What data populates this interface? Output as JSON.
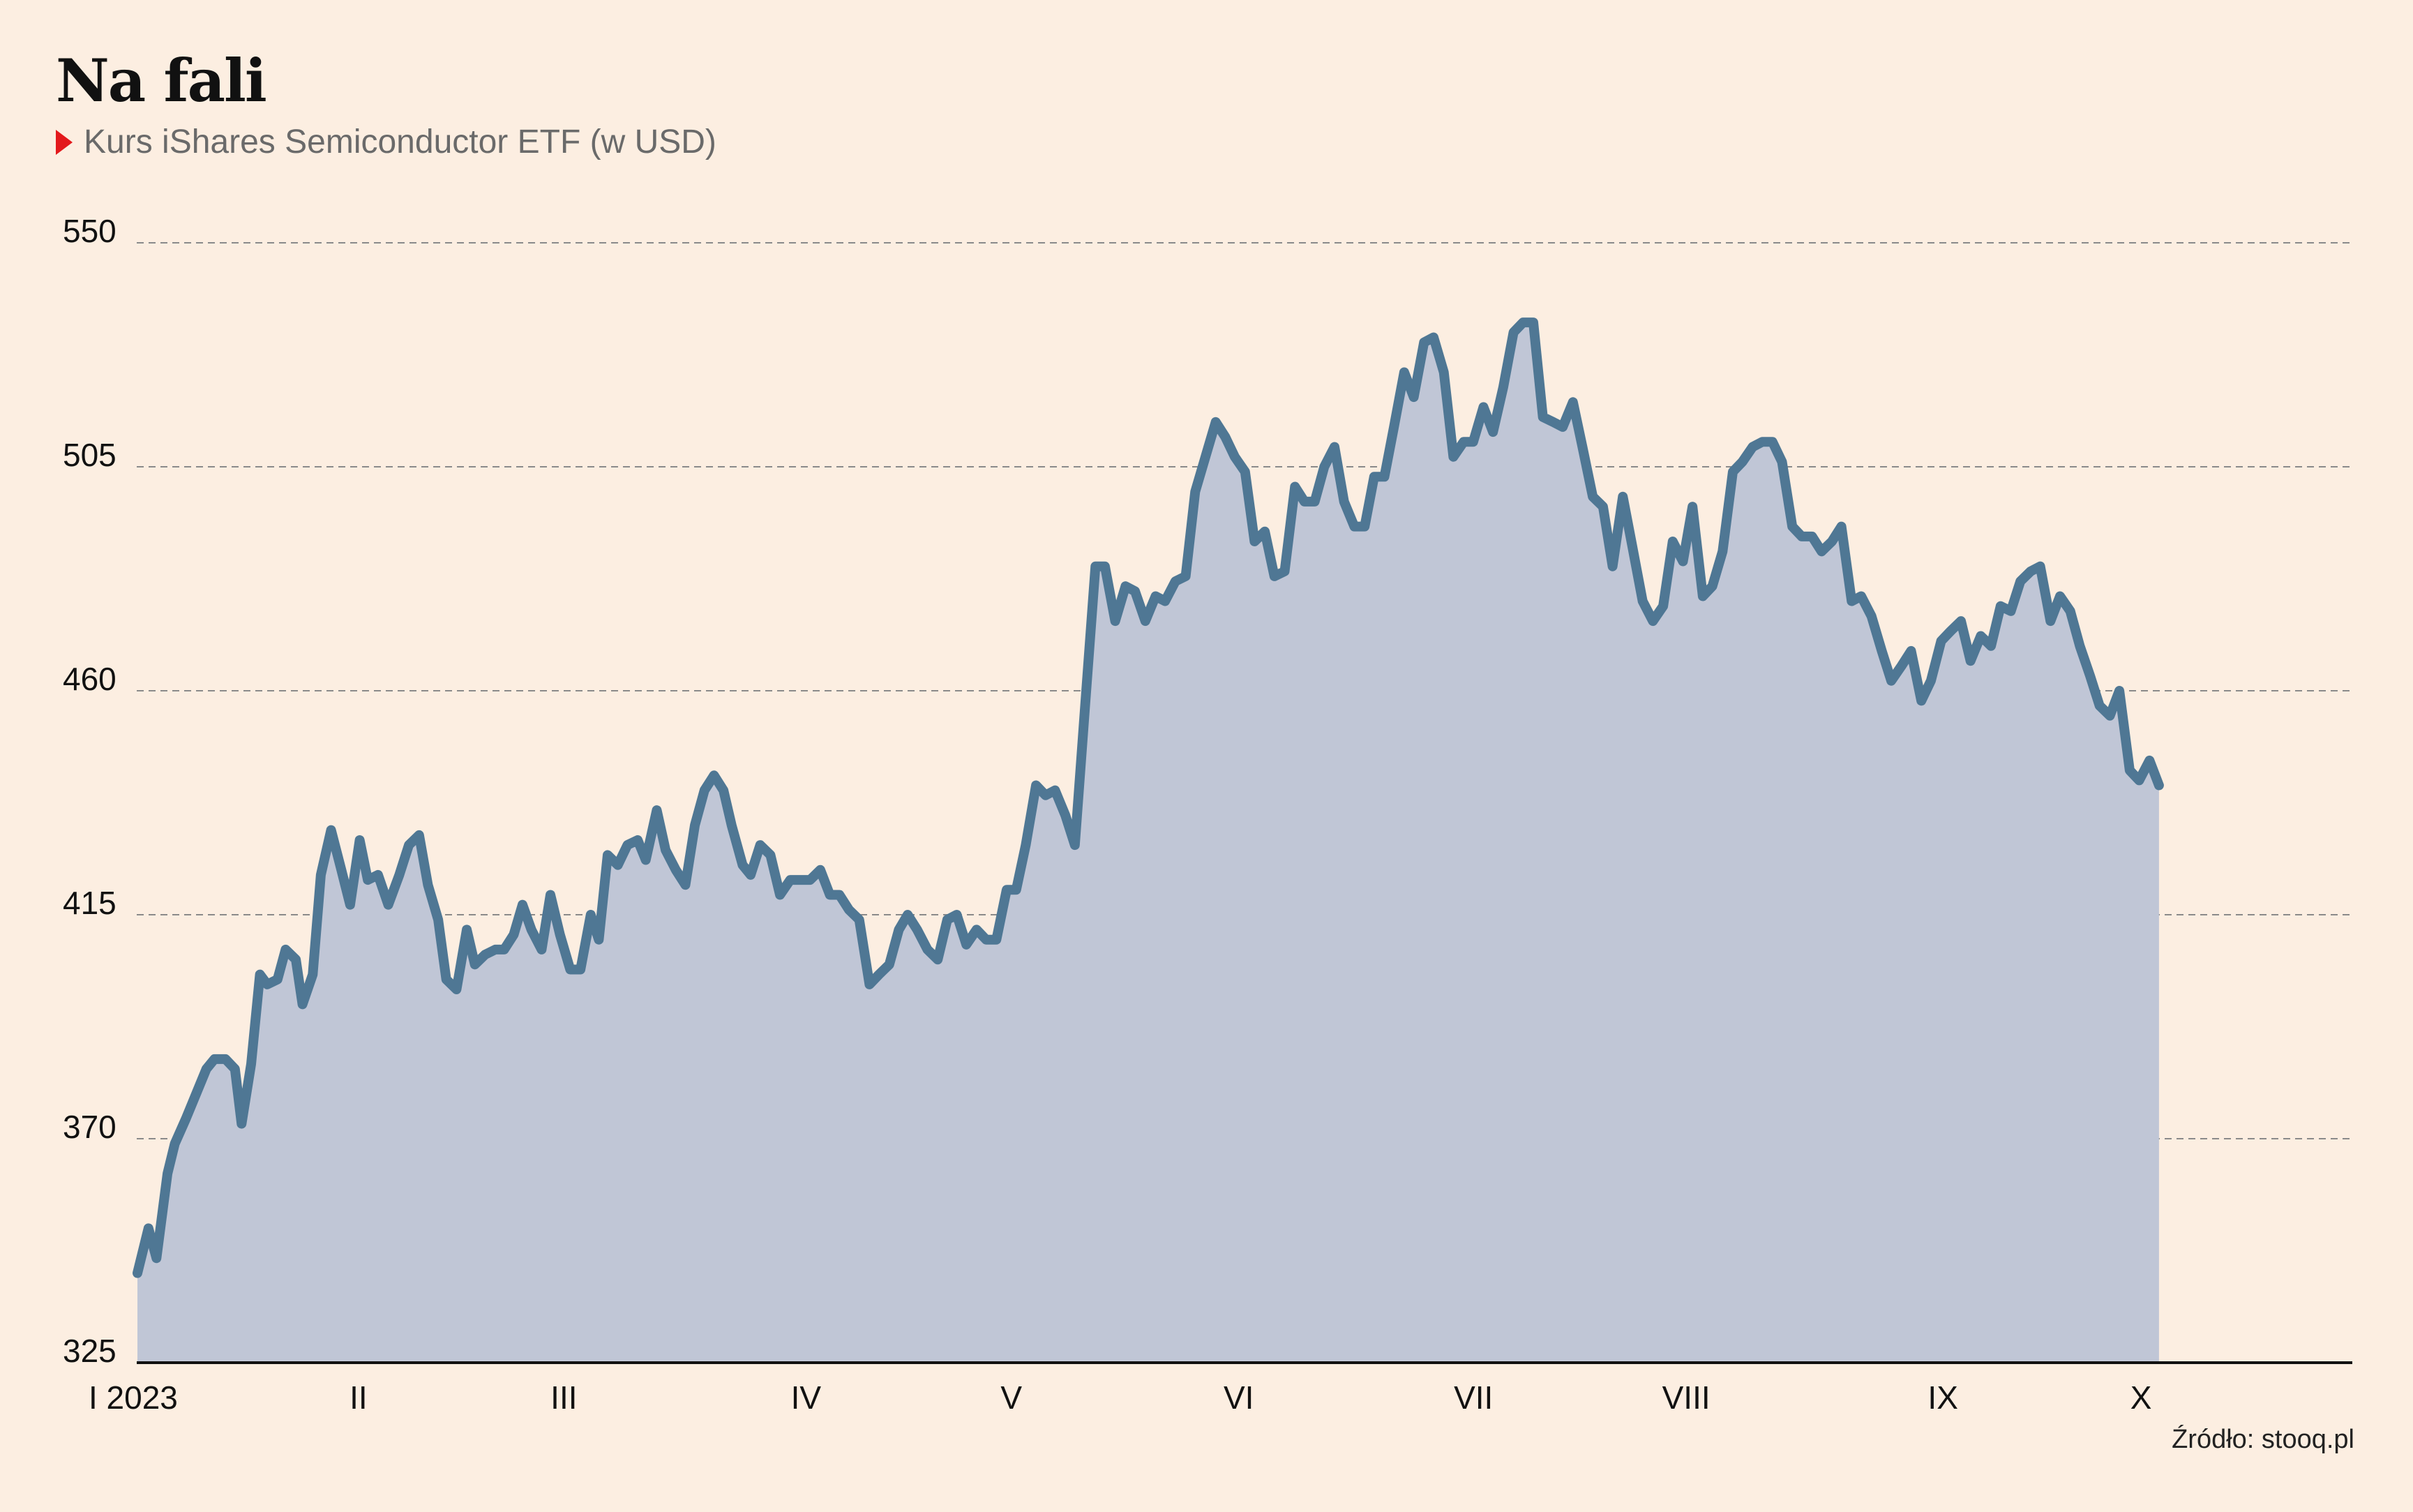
{
  "header": {
    "title": "Na fali",
    "subtitle": "Kurs iShares Semiconductor ETF (w USD)"
  },
  "footer": {
    "source": "Źródło: stooq.pl"
  },
  "colors": {
    "background": "#FCEEE1",
    "line": "#4F7794",
    "area": "#C0C6D6",
    "grid": "#8A8A8A",
    "axis": "#111111",
    "marker": "#E3191C"
  },
  "chart_data": {
    "type": "area",
    "title": "Na fali",
    "subtitle": "Kurs iShares Semiconductor ETF (w USD)",
    "xlabel": "",
    "ylabel": "",
    "ylim": [
      325,
      550
    ],
    "yticks": [
      325,
      370,
      415,
      460,
      505,
      550
    ],
    "grid": "horizontal-dashed",
    "legend": "none",
    "xrange": [
      "2023-01-03",
      "2023-10-31"
    ],
    "xticks": [
      {
        "label": "I 2023",
        "date": "2023-01-03"
      },
      {
        "label": "II",
        "date": "2023-02-01"
      },
      {
        "label": "III",
        "date": "2023-03-01"
      },
      {
        "label": "IV",
        "date": "2023-04-03"
      },
      {
        "label": "V",
        "date": "2023-05-01"
      },
      {
        "label": "VI",
        "date": "2023-06-01"
      },
      {
        "label": "VII",
        "date": "2023-07-03"
      },
      {
        "label": "VIII",
        "date": "2023-08-01"
      },
      {
        "label": "IX",
        "date": "2023-09-05"
      },
      {
        "label": "X",
        "date": "2023-10-02"
      }
    ],
    "series": [
      {
        "values": [
          [
            0,
            343
          ],
          [
            1.5,
            352
          ],
          [
            2.6,
            346
          ],
          [
            4.1,
            363
          ],
          [
            5.1,
            369
          ],
          [
            6.6,
            374
          ],
          [
            8.0,
            379
          ],
          [
            9.4,
            384
          ],
          [
            10.5,
            386
          ],
          [
            12.0,
            386
          ],
          [
            13.3,
            384
          ],
          [
            14.2,
            373
          ],
          [
            15.5,
            385
          ],
          [
            16.7,
            403
          ],
          [
            17.7,
            401
          ],
          [
            19.1,
            402
          ],
          [
            20.2,
            408
          ],
          [
            21.6,
            406
          ],
          [
            22.5,
            397
          ],
          [
            23.9,
            403
          ],
          [
            25.0,
            423
          ],
          [
            26.4,
            432
          ],
          [
            27.8,
            424
          ],
          [
            29.0,
            417
          ],
          [
            30.3,
            430
          ],
          [
            31.4,
            422
          ],
          [
            32.8,
            423
          ],
          [
            34.2,
            417
          ],
          [
            35.7,
            423
          ],
          [
            37.0,
            429
          ],
          [
            38.4,
            431
          ],
          [
            39.6,
            421
          ],
          [
            41.0,
            414
          ],
          [
            42.1,
            402
          ],
          [
            43.5,
            400
          ],
          [
            44.9,
            412
          ],
          [
            46.0,
            405
          ],
          [
            47.4,
            407
          ],
          [
            48.8,
            408
          ],
          [
            50.0,
            408
          ],
          [
            51.3,
            411
          ],
          [
            52.5,
            417
          ],
          [
            53.7,
            412
          ],
          [
            55.1,
            408
          ],
          [
            56.3,
            419
          ],
          [
            57.6,
            411
          ],
          [
            59.0,
            404
          ],
          [
            60.4,
            404
          ],
          [
            61.8,
            415
          ],
          [
            62.9,
            410
          ],
          [
            64.1,
            427
          ],
          [
            65.5,
            425
          ],
          [
            66.8,
            429
          ],
          [
            68.2,
            430
          ],
          [
            69.3,
            426
          ],
          [
            70.8,
            436
          ],
          [
            72.0,
            428
          ],
          [
            73.4,
            424
          ],
          [
            74.7,
            421
          ],
          [
            76.0,
            433
          ],
          [
            77.3,
            440
          ],
          [
            78.6,
            443
          ],
          [
            79.9,
            440
          ],
          [
            81.0,
            433
          ],
          [
            82.5,
            425
          ],
          [
            83.6,
            423
          ],
          [
            84.9,
            429
          ],
          [
            86.3,
            427
          ],
          [
            87.6,
            419
          ],
          [
            89.0,
            422
          ],
          [
            90.4,
            422
          ],
          [
            91.7,
            422
          ],
          [
            93.1,
            424
          ],
          [
            94.4,
            419
          ],
          [
            95.7,
            419
          ],
          [
            97.0,
            416
          ],
          [
            98.4,
            414
          ],
          [
            99.8,
            401
          ],
          [
            101.1,
            403
          ],
          [
            102.5,
            405
          ],
          [
            103.8,
            412
          ],
          [
            105.0,
            415
          ],
          [
            106.3,
            412
          ],
          [
            107.7,
            408
          ],
          [
            109.1,
            406
          ],
          [
            110.4,
            414
          ],
          [
            111.7,
            415
          ],
          [
            113.0,
            409
          ],
          [
            114.4,
            412
          ],
          [
            115.7,
            410
          ],
          [
            117.1,
            410
          ],
          [
            118.5,
            420
          ],
          [
            119.8,
            420
          ],
          [
            121.1,
            429
          ],
          [
            122.5,
            441
          ],
          [
            123.8,
            439
          ],
          [
            125.1,
            440
          ],
          [
            126.5,
            435
          ],
          [
            127.8,
            429
          ],
          [
            129.2,
            457
          ],
          [
            130.6,
            485
          ],
          [
            131.9,
            485
          ],
          [
            133.3,
            474
          ],
          [
            134.7,
            481
          ],
          [
            136.0,
            480
          ],
          [
            137.4,
            474
          ],
          [
            138.8,
            479
          ],
          [
            140.1,
            478
          ],
          [
            141.5,
            482
          ],
          [
            142.9,
            483
          ],
          [
            144.2,
            500
          ],
          [
            145.6,
            507
          ],
          [
            147.0,
            514
          ],
          [
            148.3,
            511
          ],
          [
            149.6,
            507
          ],
          [
            151.0,
            504
          ],
          [
            152.3,
            490
          ],
          [
            153.7,
            492
          ],
          [
            155.0,
            483
          ],
          [
            156.4,
            484
          ],
          [
            157.8,
            501
          ],
          [
            159.1,
            498
          ],
          [
            160.5,
            498
          ],
          [
            161.8,
            505
          ],
          [
            163.2,
            509
          ],
          [
            164.5,
            498
          ],
          [
            165.9,
            493
          ],
          [
            167.3,
            493
          ],
          [
            168.6,
            503
          ],
          [
            170.0,
            503
          ],
          [
            171.3,
            513
          ],
          [
            172.7,
            524
          ],
          [
            174.0,
            519
          ],
          [
            175.4,
            530
          ],
          [
            176.7,
            531
          ],
          [
            178.1,
            524
          ],
          [
            179.4,
            507
          ],
          [
            180.8,
            510
          ],
          [
            182.1,
            510
          ],
          [
            183.5,
            517
          ],
          [
            184.8,
            512
          ],
          [
            186.2,
            521
          ],
          [
            187.6,
            532
          ],
          [
            188.9,
            534
          ],
          [
            190.3,
            534
          ],
          [
            191.6,
            515
          ],
          [
            193.0,
            514
          ],
          [
            194.3,
            513
          ],
          [
            195.7,
            518
          ],
          [
            197.0,
            509
          ],
          [
            198.4,
            499
          ],
          [
            199.8,
            497
          ],
          [
            201.1,
            485
          ],
          [
            202.5,
            499
          ],
          [
            203.8,
            489
          ],
          [
            205.2,
            478
          ],
          [
            206.6,
            474
          ],
          [
            208.0,
            477
          ],
          [
            209.3,
            490
          ],
          [
            210.7,
            486
          ],
          [
            212.0,
            497
          ],
          [
            213.4,
            479
          ],
          [
            214.7,
            481
          ],
          [
            216.1,
            488
          ],
          [
            217.5,
            504
          ],
          [
            218.8,
            506
          ],
          [
            220.2,
            509
          ],
          [
            221.5,
            510
          ],
          [
            222.9,
            510
          ],
          [
            224.2,
            506
          ],
          [
            225.6,
            493
          ],
          [
            226.9,
            491
          ],
          [
            228.3,
            491
          ],
          [
            229.6,
            488
          ],
          [
            231.0,
            490
          ],
          [
            232.3,
            493
          ],
          [
            233.7,
            478
          ],
          [
            235.0,
            479
          ],
          [
            236.4,
            475
          ],
          [
            237.8,
            468
          ],
          [
            239.1,
            462
          ],
          [
            240.5,
            465
          ],
          [
            241.8,
            468
          ],
          [
            243.2,
            458
          ],
          [
            244.5,
            462
          ],
          [
            245.9,
            470
          ],
          [
            247.2,
            472
          ],
          [
            248.6,
            474
          ],
          [
            249.9,
            466
          ],
          [
            251.3,
            471
          ],
          [
            252.7,
            469
          ],
          [
            254.0,
            477
          ],
          [
            255.4,
            476
          ],
          [
            256.7,
            482
          ],
          [
            258.1,
            484
          ],
          [
            259.4,
            485
          ],
          [
            260.8,
            474
          ],
          [
            262.1,
            479
          ],
          [
            263.5,
            476
          ],
          [
            264.8,
            469
          ],
          [
            266.2,
            463
          ],
          [
            267.5,
            457
          ],
          [
            268.9,
            455
          ],
          [
            270.2,
            460
          ],
          [
            271.6,
            444
          ],
          [
            272.9,
            442
          ],
          [
            274.3,
            446
          ],
          [
            275.6,
            441
          ]
        ]
      }
    ]
  }
}
